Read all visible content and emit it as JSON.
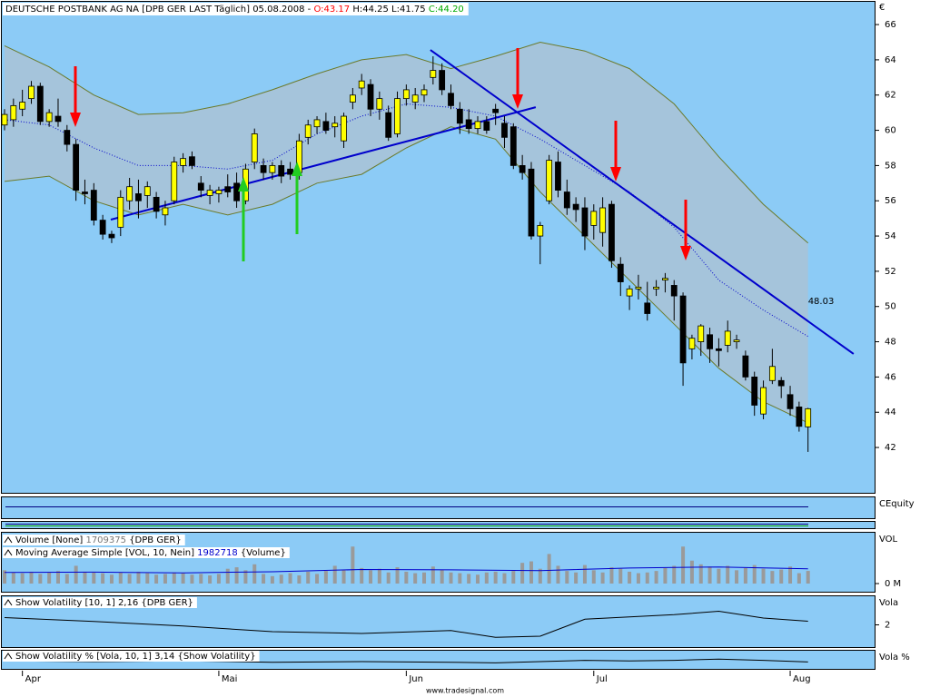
{
  "header": {
    "instrument": "DEUTSCHE POSTBANK AG NA [DPB GER LAST Täglich] 05.08.2008 -",
    "open": "O:43.17",
    "high": "H:44.25",
    "low": "L:41.75",
    "close": "C:44.20"
  },
  "chart_data": [
    {
      "type": "candlestick",
      "y_unit": "€",
      "categories": [
        null,
        null,
        "Apr",
        null,
        null,
        null,
        null,
        null,
        null,
        null,
        null,
        null,
        null,
        null,
        null,
        null,
        null,
        null,
        null,
        null,
        null,
        null,
        null,
        null,
        "Mai",
        null,
        null,
        null,
        null,
        null,
        null,
        null,
        null,
        null,
        null,
        null,
        null,
        null,
        null,
        null,
        null,
        null,
        null,
        null,
        null,
        "Jun",
        null,
        null,
        null,
        null,
        null,
        null,
        null,
        null,
        null,
        null,
        null,
        null,
        null,
        null,
        null,
        null,
        null,
        null,
        null,
        null,
        "Jul",
        null,
        null,
        null,
        null,
        null,
        null,
        null,
        null,
        null,
        null,
        null,
        null,
        null,
        null,
        null,
        null,
        null,
        null,
        null,
        null,
        null,
        "Aug",
        null,
        null
      ],
      "open": [
        60.3,
        60.6,
        61.2,
        61.8,
        62.5,
        60.5,
        60.8,
        60.0,
        59.2,
        56.5,
        56.6,
        54.9,
        54.1,
        54.5,
        56.0,
        56.4,
        56.3,
        56.2,
        55.2,
        56.0,
        58.0,
        58.5,
        57.0,
        56.3,
        56.4,
        56.8,
        57.0,
        56.0,
        58.2,
        58.0,
        57.6,
        58.0,
        57.8,
        57.6,
        59.6,
        60.2,
        60.5,
        60.2,
        59.4,
        61.6,
        62.4,
        62.6,
        61.2,
        61.0,
        59.8,
        61.8,
        61.6,
        62.0,
        63.0,
        63.4,
        62.1,
        61.2,
        60.6,
        60.1,
        60.5,
        61.2,
        60.4,
        60.2,
        58.0,
        57.8,
        54.0,
        56.0,
        58.2,
        56.5,
        55.8,
        55.6,
        54.6,
        54.2,
        55.8,
        52.4,
        50.6,
        51.0,
        50.2,
        51.0,
        51.5,
        51.2,
        50.6,
        47.6,
        48.0,
        48.4,
        47.6,
        47.8,
        48.0,
        47.2,
        46.0,
        43.9,
        45.8,
        45.8,
        45.0,
        44.3,
        43.17
      ],
      "high": [
        61.2,
        61.8,
        62.3,
        62.8,
        62.7,
        61.2,
        61.8,
        60.3,
        59.5,
        57.2,
        57.0,
        55.2,
        54.3,
        56.6,
        57.3,
        57.2,
        57.1,
        56.5,
        56.0,
        58.5,
        58.7,
        58.8,
        57.4,
        56.9,
        56.8,
        57.5,
        57.6,
        58.1,
        60.1,
        58.4,
        58.2,
        58.3,
        58.2,
        59.8,
        60.6,
        60.8,
        61.0,
        60.8,
        61.0,
        62.4,
        63.2,
        62.9,
        62.2,
        61.4,
        62.2,
        62.6,
        62.4,
        62.6,
        64.2,
        63.8,
        62.6,
        61.6,
        61.2,
        60.8,
        60.8,
        61.5,
        60.8,
        60.4,
        58.6,
        58.2,
        54.8,
        58.6,
        58.8,
        57.2,
        56.2,
        56.2,
        55.8,
        56.2,
        56.0,
        52.8,
        51.2,
        51.8,
        51.4,
        51.5,
        51.9,
        51.5,
        50.8,
        48.4,
        49.0,
        48.8,
        48.2,
        49.2,
        48.4,
        47.5,
        46.3,
        45.8,
        47.6,
        46.0,
        45.5,
        44.6,
        44.25
      ],
      "low": [
        60.0,
        60.2,
        60.8,
        61.5,
        60.3,
        60.2,
        60.2,
        58.8,
        56.0,
        55.8,
        54.6,
        53.8,
        53.6,
        54.0,
        55.5,
        55.0,
        55.6,
        55.0,
        54.6,
        55.8,
        57.6,
        57.8,
        56.2,
        55.8,
        55.9,
        56.2,
        55.6,
        55.8,
        57.8,
        57.2,
        57.2,
        57.0,
        57.2,
        57.2,
        59.2,
        59.8,
        59.8,
        59.6,
        59.0,
        61.2,
        62.0,
        60.8,
        60.6,
        59.4,
        59.6,
        61.4,
        61.2,
        61.6,
        62.6,
        62.0,
        61.2,
        59.8,
        59.8,
        59.8,
        59.8,
        60.3,
        59.0,
        57.8,
        57.2,
        53.8,
        52.4,
        55.8,
        56.2,
        55.2,
        54.8,
        53.2,
        53.8,
        53.4,
        52.2,
        50.6,
        49.8,
        50.4,
        49.2,
        50.6,
        50.8,
        49.2,
        45.5,
        47.0,
        47.2,
        46.8,
        46.6,
        47.4,
        47.6,
        45.8,
        43.8,
        43.6,
        45.6,
        44.8,
        43.8,
        42.9,
        41.75
      ],
      "close": [
        60.9,
        61.4,
        61.6,
        62.5,
        60.5,
        61.0,
        60.5,
        59.2,
        56.6,
        56.4,
        54.9,
        54.1,
        53.9,
        56.2,
        56.8,
        56.0,
        56.8,
        55.4,
        55.6,
        58.2,
        58.4,
        58.0,
        56.6,
        56.6,
        56.6,
        56.5,
        56.0,
        57.8,
        59.8,
        57.6,
        58.0,
        57.4,
        57.5,
        59.4,
        60.3,
        60.6,
        60.0,
        60.4,
        60.8,
        62.0,
        62.8,
        61.2,
        61.8,
        59.6,
        61.8,
        62.3,
        62.0,
        62.3,
        63.4,
        62.3,
        61.4,
        60.4,
        60.1,
        60.5,
        60.0,
        61.0,
        59.6,
        58.0,
        57.6,
        54.0,
        54.6,
        58.3,
        56.6,
        55.6,
        55.5,
        54.0,
        55.4,
        55.6,
        52.6,
        51.4,
        51.0,
        51.1,
        49.6,
        51.1,
        51.6,
        50.6,
        46.8,
        48.2,
        48.9,
        47.6,
        47.5,
        48.6,
        48.1,
        46.0,
        44.4,
        45.4,
        46.6,
        45.5,
        44.2,
        43.2,
        44.2
      ],
      "ylim": [
        39.48,
        67.24
      ],
      "yticks": [
        42,
        44,
        46,
        48,
        50,
        52,
        54,
        56,
        58,
        60,
        62,
        64,
        66
      ],
      "bands": {
        "x": [
          0,
          5,
          10,
          15,
          20,
          25,
          30,
          35,
          40,
          45,
          50,
          55,
          60,
          65,
          70,
          75,
          80,
          85,
          90
        ],
        "upper": [
          64.8,
          63.6,
          62.0,
          60.9,
          61.0,
          61.5,
          62.3,
          63.2,
          64.0,
          64.3,
          63.5,
          64.2,
          65.0,
          64.5,
          63.5,
          61.5,
          58.5,
          55.8,
          53.6
        ],
        "middle": [
          60.6,
          60.3,
          59.0,
          58.0,
          58.0,
          57.8,
          58.3,
          59.8,
          60.8,
          61.5,
          61.3,
          60.8,
          59.5,
          58.0,
          56.5,
          54.5,
          51.5,
          49.8,
          48.3
        ],
        "lower": [
          57.1,
          57.4,
          56.0,
          55.2,
          55.8,
          55.2,
          55.8,
          57.0,
          57.5,
          59.0,
          60.2,
          59.5,
          56.5,
          54.0,
          51.5,
          49.0,
          46.5,
          44.6,
          43.4
        ]
      },
      "trendlines": [
        {
          "x": [
            11.9,
            59.5
          ],
          "values": [
            54.93,
            61.31
          ]
        },
        {
          "x": [
            47.7,
            95.1
          ],
          "values": [
            64.56,
            47.31
          ],
          "label": "48.03"
        }
      ]
    },
    {
      "type": "panel",
      "axis_label": "CEquity"
    },
    {
      "type": "bar",
      "axis_label": "VOL",
      "ylim": [
        0,
        6500000
      ],
      "yticks": [
        {
          "value": 0,
          "label": "0 M"
        }
      ],
      "series": [
        {
          "name": "Volume [None]",
          "source": "{DPB GER}",
          "color": "#9a9a9a",
          "values": [
            1800000,
            1500000,
            1400000,
            1600000,
            1300000,
            1500000,
            1700000,
            1300000,
            2400000,
            1600000,
            1500000,
            1400000,
            1200000,
            1500000,
            1300000,
            1600000,
            1400000,
            1200000,
            1300000,
            1500000,
            1400000,
            1200000,
            1300000,
            1100000,
            1300000,
            2000000,
            2200000,
            1800000,
            2600000,
            1300000,
            1000000,
            1200000,
            1400000,
            1100000,
            1600000,
            1300000,
            1700000,
            2400000,
            1900000,
            5000000,
            2100000,
            1800000,
            2000000,
            1500000,
            2200000,
            1600000,
            1400000,
            1500000,
            2300000,
            1900000,
            1500000,
            1400000,
            1300000,
            1200000,
            1500000,
            1600000,
            1400000,
            1700000,
            2800000,
            3000000,
            2000000,
            4000000,
            2400000,
            1700000,
            1500000,
            2500000,
            1800000,
            1500000,
            2200000,
            2000000,
            1600000,
            1400000,
            1500000,
            1700000,
            2100000,
            2400000,
            5000000,
            3100000,
            2600000,
            2300000,
            2000000,
            2400000,
            1800000,
            2100000,
            2500000,
            2000000,
            1700000,
            1900000,
            2300000,
            1400000,
            1709375
          ]
        },
        {
          "name": "Moving Average Simple [VOL, 10, Nein]",
          "source": "{Volume}",
          "color": "#0000cc",
          "x": [
            0,
            10,
            20,
            30,
            40,
            50,
            60,
            70,
            80,
            90
          ],
          "values": [
            1500000,
            1550000,
            1450000,
            1600000,
            1900000,
            1850000,
            1750000,
            2100000,
            2250000,
            1982718
          ]
        }
      ]
    },
    {
      "type": "line",
      "axis_label": "Vola",
      "ylim": [
        1.1,
        2.9
      ],
      "yticks": [
        2
      ],
      "series": [
        {
          "name": "Show Volatility [10, 1] 2,16 {DPB GER}",
          "color": "#000000",
          "x": [
            0,
            10,
            20,
            30,
            40,
            50,
            55,
            60,
            65,
            70,
            75,
            80,
            85,
            90
          ],
          "values": [
            2.32,
            2.15,
            1.95,
            1.7,
            1.62,
            1.75,
            1.45,
            1.5,
            2.25,
            2.35,
            2.45,
            2.6,
            2.3,
            2.16
          ]
        }
      ]
    },
    {
      "type": "line",
      "axis_label": "Vola %",
      "ylim": [
        2.2,
        4.2
      ],
      "series": [
        {
          "name": "Show Volatility % [Vola, 10, 1] 3,14 {Show Volatility}",
          "color": "#000000",
          "x": [
            0,
            10,
            20,
            30,
            40,
            50,
            55,
            60,
            65,
            70,
            75,
            80,
            85,
            90
          ],
          "values": [
            3.3,
            3.2,
            3.3,
            3.1,
            3.2,
            3.1,
            3.0,
            3.2,
            3.4,
            3.3,
            3.4,
            3.6,
            3.4,
            3.14
          ]
        }
      ]
    }
  ],
  "footer": "www.tradesignal.com"
}
